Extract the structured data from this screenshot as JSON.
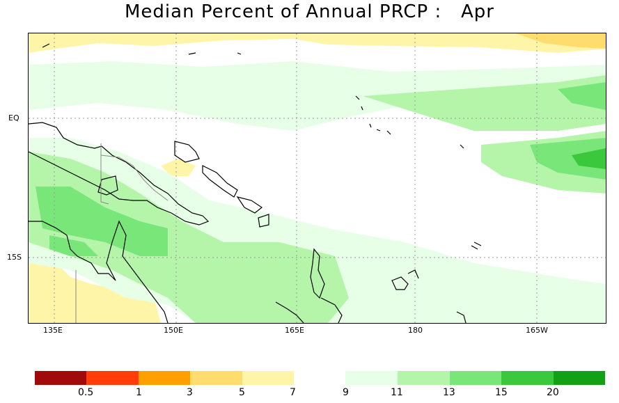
{
  "title": "Median Percent of Annual PRCP :   Apr",
  "map": {
    "lat_ticks": [
      "EQ",
      "15S"
    ],
    "lon_ticks": [
      "135E",
      "150E",
      "165E",
      "180",
      "165W"
    ]
  },
  "legend": {
    "dry_colors": [
      "#a00a0a",
      "#ff3c0a",
      "#ffa000",
      "#ffdc6e",
      "#fff5a8"
    ],
    "dry_labels": [
      "0.5",
      "1",
      "3",
      "5",
      "7"
    ],
    "wet_colors": [
      "#e6ffe6",
      "#b4f5aa",
      "#78e678",
      "#3cc83c",
      "#14a014"
    ],
    "wet_labels": [
      "9",
      "11",
      "13",
      "15",
      "20"
    ]
  },
  "colors": {
    "coast": "#000000",
    "border": "#888888",
    "grid": "#999999"
  }
}
